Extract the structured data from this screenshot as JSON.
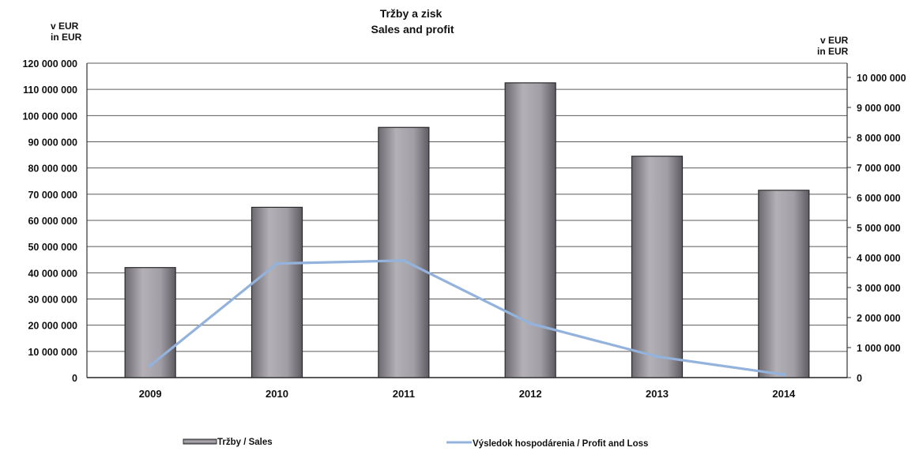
{
  "chart_data": {
    "type": "bar",
    "title": "Tržby a zisk",
    "subtitle": "Sales and profit",
    "y_left_unit_line1": "v EUR",
    "y_left_unit_line2": "in EUR",
    "y_right_unit_line1": "v EUR",
    "y_right_unit_line2": "in  EUR",
    "categories": [
      "2009",
      "2010",
      "2011",
      "2012",
      "2013",
      "2014"
    ],
    "series": [
      {
        "name": "Tržby / Sales",
        "type": "bar",
        "axis": "left",
        "values": [
          42000000,
          65000000,
          95500000,
          112500000,
          84500000,
          71500000
        ],
        "color": "#9c98a0"
      },
      {
        "name": "Výsledok hospodárenia / Profit and Loss",
        "type": "line",
        "axis": "right",
        "values": [
          400000,
          3800000,
          3900000,
          1800000,
          700000,
          100000
        ],
        "color": "#93b3dd"
      }
    ],
    "y_left": {
      "ylim": [
        0,
        120000000
      ],
      "ticks": [
        "0",
        "10 000 000",
        "20 000 000",
        "30 000 000",
        "40 000 000",
        "50 000 000",
        "60 000 000",
        "70 000 000",
        "80 000 000",
        "90 000 000",
        "100 000 000",
        "110 000 000",
        "120 000 000"
      ]
    },
    "y_right": {
      "ylim": [
        0,
        10000000
      ],
      "ticks": [
        "0",
        "1 000 000",
        "2 000 000",
        "3 000 000",
        "4 000 000",
        "5 000 000",
        "6 000 000",
        "7 000 000",
        "8 000 000",
        "9 000 000",
        "10 000 000"
      ]
    },
    "grid": true,
    "legend_position": "bottom"
  }
}
